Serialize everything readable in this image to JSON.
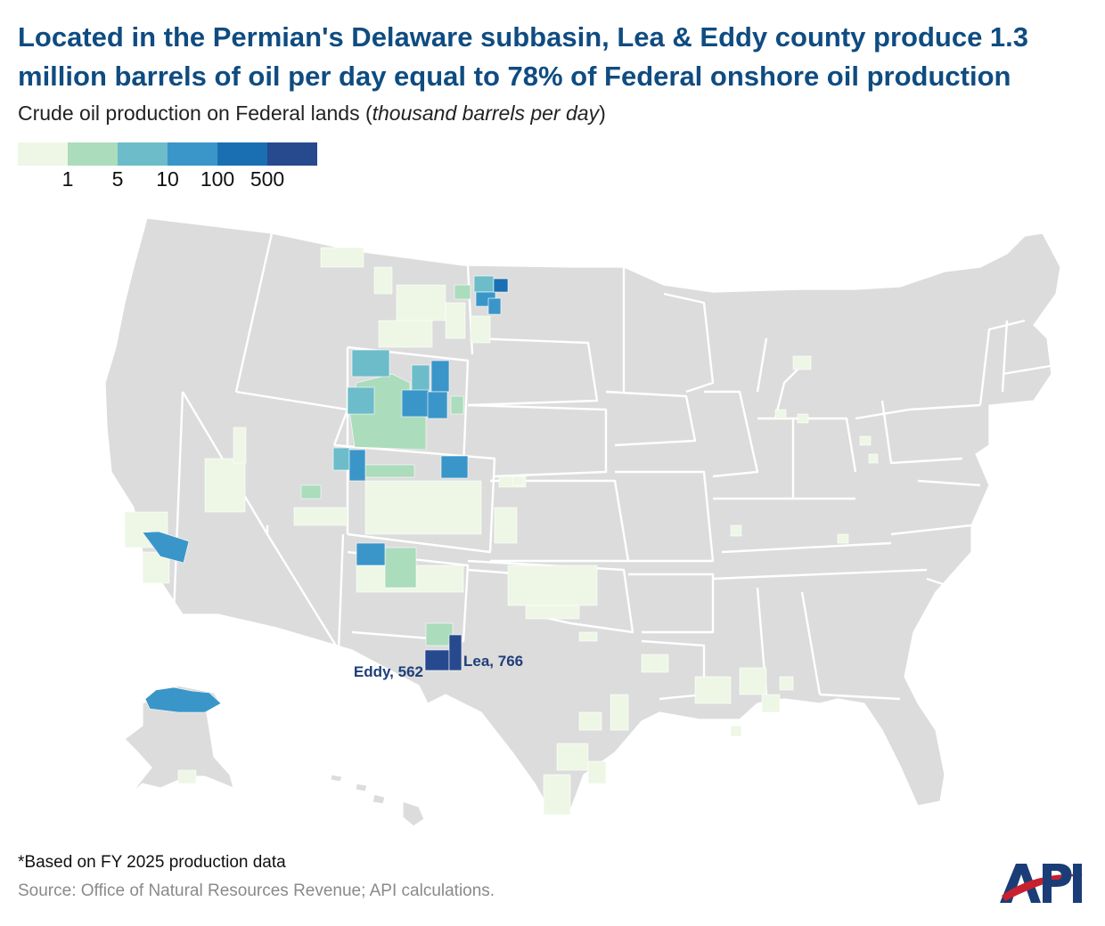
{
  "title": "Located in the Permian's Delaware subbasin, Lea & Eddy county produce 1.3 million barrels of oil per day equal to 78% of Federal onshore oil production",
  "subtitle_plain": "Crude oil production on Federal lands (",
  "subtitle_italic": "thousand barrels per day",
  "subtitle_close": ")",
  "legend": {
    "colors": [
      "#eef7e6",
      "#abdcbc",
      "#6cbcca",
      "#3a96c9",
      "#1a6fb2",
      "#27498e"
    ],
    "labels": [
      "1",
      "5",
      "10",
      "100",
      "500"
    ]
  },
  "map": {
    "base_color": "#dcdcdc",
    "border_color": "#ffffff",
    "annotations": [
      {
        "label": "Eddy, 562",
        "county": "Eddy",
        "value": 562,
        "color": "#27498e"
      },
      {
        "label": "Lea, 766",
        "county": "Lea",
        "value": 766,
        "color": "#27498e"
      }
    ]
  },
  "footnote": "*Based on FY 2025 production data",
  "source": "Source: Office of Natural Resources Revenue; API calculations.",
  "logo": {
    "text": "API",
    "colors": {
      "blue": "#1a3d78",
      "red": "#c8202f"
    }
  }
}
